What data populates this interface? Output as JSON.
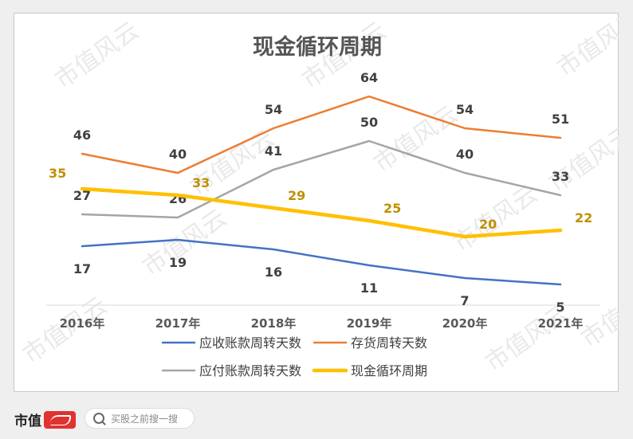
{
  "chart_data": {
    "type": "line",
    "title": "现金循环周期",
    "categories": [
      "2016年",
      "2017年",
      "2018年",
      "2019年",
      "2020年",
      "2021年"
    ],
    "ylim": [
      0,
      70
    ],
    "grid": false,
    "legend_position": "bottom",
    "series": [
      {
        "name": "应收账款周转天数",
        "values": [
          17,
          19,
          16,
          11,
          7,
          5
        ],
        "color": "#4472c4",
        "label_color": "#404040",
        "label_pos": "below",
        "stroke": 2.5
      },
      {
        "name": "存货周转天数",
        "values": [
          46,
          40,
          54,
          64,
          54,
          51
        ],
        "color": "#ed7d31",
        "label_color": "#404040",
        "label_pos": "above",
        "stroke": 2.5
      },
      {
        "name": "应付账款周转天数",
        "values": [
          27,
          26,
          41,
          50,
          40,
          33
        ],
        "color": "#a5a5a5",
        "label_color": "#404040",
        "label_pos": "above",
        "stroke": 2.5
      },
      {
        "name": "现金循环周期",
        "values": [
          35,
          33,
          29,
          25,
          20,
          22
        ],
        "color": "#ffc000",
        "label_color": "#bf9000",
        "label_pos": "right",
        "stroke": 4.5
      }
    ]
  },
  "watermark": "市值风云",
  "footer": {
    "brand": "市值",
    "search_placeholder": "买股之前搜一搜"
  }
}
